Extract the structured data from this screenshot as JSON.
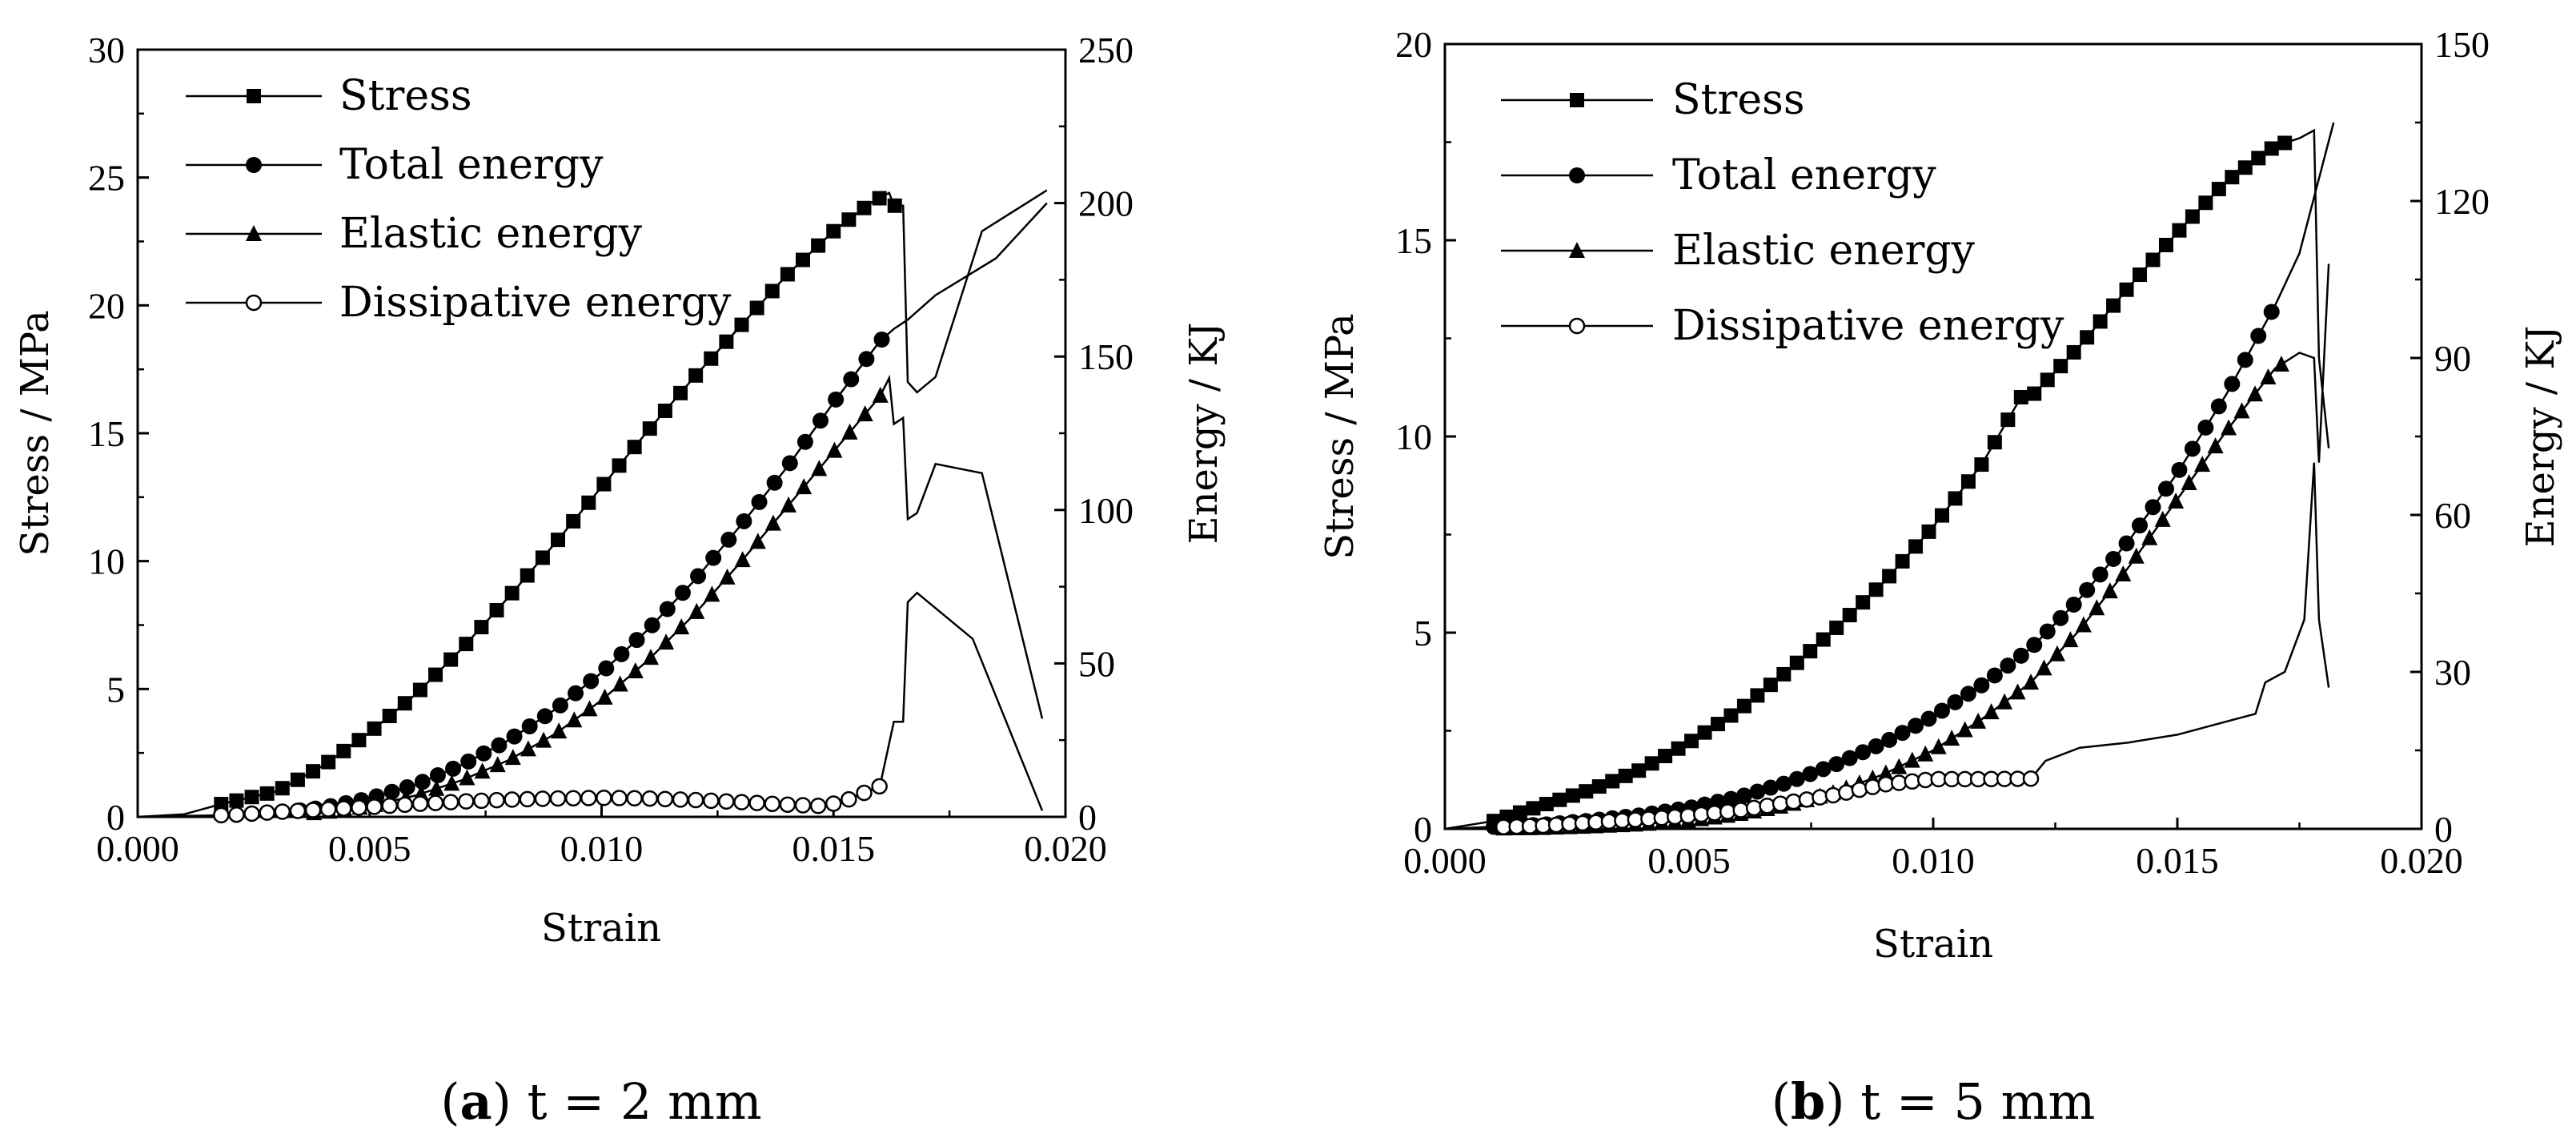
{
  "chart_data": [
    {
      "type": "line",
      "caption_letter": "a",
      "caption_rest": " t = 2 mm",
      "xlabel": "Strain",
      "ylabel": "Stress / MPa",
      "y2label": "Energy / KJ",
      "xlim": [
        0,
        0.02
      ],
      "ylim": [
        0,
        30
      ],
      "y2lim": [
        0,
        250
      ],
      "xticks": [
        "0.000",
        "0.005",
        "0.010",
        "0.015",
        "0.020"
      ],
      "yticks": [
        "0",
        "5",
        "10",
        "15",
        "20",
        "25",
        "30"
      ],
      "y2ticks": [
        "0",
        "50",
        "100",
        "150",
        "200",
        "250"
      ],
      "legend_position": "top-left",
      "series": [
        {
          "name": "Stress",
          "axis": "left",
          "marker": "square",
          "marker_step": 0.00033,
          "marker_start": 0.0018,
          "marker_end": 0.0164,
          "points": [
            [
              0,
              0
            ],
            [
              0.001,
              0.1
            ],
            [
              0.0018,
              0.5
            ],
            [
              0.003,
              1.0
            ],
            [
              0.004,
              2.0
            ],
            [
              0.005,
              3.3
            ],
            [
              0.006,
              4.8
            ],
            [
              0.007,
              6.6
            ],
            [
              0.008,
              8.6
            ],
            [
              0.009,
              10.7
            ],
            [
              0.01,
              12.9
            ],
            [
              0.011,
              15.1
            ],
            [
              0.012,
              17.2
            ],
            [
              0.013,
              19.2
            ],
            [
              0.014,
              21.2
            ],
            [
              0.015,
              22.9
            ],
            [
              0.0158,
              24.0
            ],
            [
              0.0162,
              24.4
            ],
            [
              0.0163,
              23.9
            ],
            [
              0.0165,
              23.9
            ],
            [
              0.0166,
              17.0
            ],
            [
              0.0168,
              16.6
            ],
            [
              0.0172,
              17.2
            ],
            [
              0.0182,
              22.9
            ],
            [
              0.0196,
              24.5
            ]
          ]
        },
        {
          "name": "Total energy",
          "axis": "right",
          "marker": "circle",
          "marker_step": 0.00033,
          "marker_start": 0.0035,
          "marker_end": 0.0163,
          "points": [
            [
              0,
              0
            ],
            [
              0.002,
              0.3
            ],
            [
              0.003,
              1.2
            ],
            [
              0.004,
              3.0
            ],
            [
              0.005,
              6.0
            ],
            [
              0.006,
              10.5
            ],
            [
              0.007,
              17.0
            ],
            [
              0.008,
              25.0
            ],
            [
              0.009,
              35.0
            ],
            [
              0.01,
              47.0
            ],
            [
              0.011,
              61.0
            ],
            [
              0.012,
              77.0
            ],
            [
              0.013,
              95.0
            ],
            [
              0.014,
              114.0
            ],
            [
              0.015,
              135.0
            ],
            [
              0.016,
              155.0
            ],
            [
              0.0163,
              159.0
            ],
            [
              0.0166,
              162.0
            ],
            [
              0.0172,
              170.0
            ],
            [
              0.0185,
              182.0
            ],
            [
              0.0196,
              200.0
            ]
          ]
        },
        {
          "name": "Elastic energy",
          "axis": "right",
          "marker": "triangle",
          "marker_step": 0.00033,
          "marker_start": 0.0038,
          "marker_end": 0.0163,
          "points": [
            [
              0,
              0
            ],
            [
              0.003,
              0.4
            ],
            [
              0.004,
              1.5
            ],
            [
              0.005,
              3.5
            ],
            [
              0.006,
              7.0
            ],
            [
              0.007,
              12.0
            ],
            [
              0.008,
              18.5
            ],
            [
              0.009,
              27.0
            ],
            [
              0.01,
              38.0
            ],
            [
              0.011,
              51.0
            ],
            [
              0.012,
              66.0
            ],
            [
              0.013,
              83.0
            ],
            [
              0.014,
              101.0
            ],
            [
              0.015,
              119.0
            ],
            [
              0.016,
              137.0
            ],
            [
              0.0162,
              143.0
            ],
            [
              0.0163,
              128.0
            ],
            [
              0.0165,
              130.0
            ],
            [
              0.0166,
              97.0
            ],
            [
              0.0168,
              99.0
            ],
            [
              0.0172,
              115.0
            ],
            [
              0.0182,
              112.0
            ],
            [
              0.0195,
              32.0
            ]
          ]
        },
        {
          "name": "Dissipative energy",
          "axis": "right",
          "marker": "circle-open",
          "marker_step": 0.00033,
          "marker_start": 0.0018,
          "marker_end": 0.0163,
          "points": [
            [
              0,
              0
            ],
            [
              0.002,
              0.6
            ],
            [
              0.003,
              1.6
            ],
            [
              0.004,
              2.4
            ],
            [
              0.005,
              3.2
            ],
            [
              0.006,
              4.2
            ],
            [
              0.007,
              5.0
            ],
            [
              0.008,
              5.6
            ],
            [
              0.009,
              6.0
            ],
            [
              0.01,
              6.2
            ],
            [
              0.011,
              6.0
            ],
            [
              0.012,
              5.5
            ],
            [
              0.013,
              4.8
            ],
            [
              0.014,
              4.0
            ],
            [
              0.0148,
              3.5
            ],
            [
              0.0153,
              5.5
            ],
            [
              0.016,
              10.0
            ],
            [
              0.0163,
              31.0
            ],
            [
              0.0165,
              31.0
            ],
            [
              0.0166,
              70.0
            ],
            [
              0.0168,
              73.0
            ],
            [
              0.018,
              58.0
            ],
            [
              0.0195,
              2.0
            ]
          ]
        }
      ]
    },
    {
      "type": "line",
      "caption_letter": "b",
      "caption_rest": " t = 5 mm",
      "xlabel": "Strain",
      "ylabel": "Stress / MPa",
      "y2label": "Energy / KJ",
      "xlim": [
        0,
        0.02
      ],
      "ylim": [
        0,
        20
      ],
      "y2lim": [
        0,
        150
      ],
      "xticks": [
        "0.000",
        "0.005",
        "0.010",
        "0.015",
        "0.020"
      ],
      "yticks": [
        "0",
        "5",
        "10",
        "15",
        "20"
      ],
      "y2ticks": [
        "0",
        "30",
        "60",
        "90",
        "120",
        "150"
      ],
      "legend_position": "top-left",
      "series": [
        {
          "name": "Stress",
          "axis": "left",
          "marker": "square",
          "marker_step": 0.00027,
          "marker_start": 0.001,
          "marker_end": 0.0172,
          "points": [
            [
              0,
              0
            ],
            [
              0.001,
              0.2
            ],
            [
              0.002,
              0.6
            ],
            [
              0.003,
              1.0
            ],
            [
              0.004,
              1.5
            ],
            [
              0.005,
              2.2
            ],
            [
              0.006,
              3.0
            ],
            [
              0.007,
              4.0
            ],
            [
              0.008,
              5.1
            ],
            [
              0.009,
              6.3
            ],
            [
              0.01,
              7.7
            ],
            [
              0.011,
              9.3
            ],
            [
              0.0118,
              11.0
            ],
            [
              0.012,
              11.0
            ],
            [
              0.013,
              12.3
            ],
            [
              0.014,
              13.8
            ],
            [
              0.015,
              15.2
            ],
            [
              0.016,
              16.5
            ],
            [
              0.017,
              17.4
            ],
            [
              0.0175,
              17.6
            ],
            [
              0.0178,
              17.8
            ],
            [
              0.0179,
              12.0
            ],
            [
              0.0181,
              9.7
            ]
          ]
        },
        {
          "name": "Total energy",
          "axis": "right",
          "marker": "circle",
          "marker_step": 0.00027,
          "marker_start": 0.001,
          "marker_end": 0.017,
          "points": [
            [
              0,
              0
            ],
            [
              0.002,
              0.8
            ],
            [
              0.003,
              1.6
            ],
            [
              0.004,
              2.6
            ],
            [
              0.005,
              4.0
            ],
            [
              0.006,
              6.0
            ],
            [
              0.007,
              8.8
            ],
            [
              0.008,
              12.3
            ],
            [
              0.009,
              16.5
            ],
            [
              0.01,
              21.5
            ],
            [
              0.011,
              27.5
            ],
            [
              0.012,
              34.5
            ],
            [
              0.013,
              44.0
            ],
            [
              0.014,
              55.0
            ],
            [
              0.015,
              68.0
            ],
            [
              0.016,
              83.0
            ],
            [
              0.017,
              100.0
            ],
            [
              0.0175,
              110.0
            ],
            [
              0.0182,
              135.0
            ]
          ]
        },
        {
          "name": "Elastic energy",
          "axis": "right",
          "marker": "triangle",
          "marker_step": 0.00027,
          "marker_start": 0.0012,
          "marker_end": 0.0172,
          "points": [
            [
              0,
              0
            ],
            [
              0.002,
              0.2
            ],
            [
              0.003,
              0.5
            ],
            [
              0.004,
              0.9
            ],
            [
              0.005,
              1.6
            ],
            [
              0.006,
              2.8
            ],
            [
              0.007,
              4.5
            ],
            [
              0.008,
              7.0
            ],
            [
              0.009,
              10.5
            ],
            [
              0.01,
              15.0
            ],
            [
              0.011,
              21.0
            ],
            [
              0.012,
              28.0
            ],
            [
              0.013,
              38.0
            ],
            [
              0.014,
              50.0
            ],
            [
              0.015,
              63.0
            ],
            [
              0.016,
              76.0
            ],
            [
              0.017,
              88.0
            ],
            [
              0.0175,
              91.0
            ],
            [
              0.0178,
              90.0
            ],
            [
              0.0179,
              70.0
            ],
            [
              0.0181,
              108.0
            ]
          ]
        },
        {
          "name": "Dissipative energy",
          "axis": "right",
          "marker": "circle-open",
          "marker_step": 0.00027,
          "marker_start": 0.0012,
          "marker_end": 0.012,
          "points": [
            [
              0,
              0
            ],
            [
              0.002,
              0.6
            ],
            [
              0.003,
              1.2
            ],
            [
              0.004,
              1.8
            ],
            [
              0.005,
              2.5
            ],
            [
              0.006,
              3.5
            ],
            [
              0.007,
              5.0
            ],
            [
              0.008,
              6.5
            ],
            [
              0.009,
              8.5
            ],
            [
              0.01,
              9.5
            ],
            [
              0.011,
              9.5
            ],
            [
              0.012,
              9.6
            ],
            [
              0.0123,
              13.0
            ],
            [
              0.013,
              15.5
            ],
            [
              0.014,
              16.5
            ],
            [
              0.015,
              18.0
            ],
            [
              0.016,
              20.5
            ],
            [
              0.0166,
              22.0
            ],
            [
              0.0168,
              28.0
            ],
            [
              0.0172,
              30.0
            ],
            [
              0.0176,
              40.0
            ],
            [
              0.0178,
              70.0
            ],
            [
              0.0179,
              40.0
            ],
            [
              0.0181,
              27.0
            ]
          ]
        }
      ]
    }
  ]
}
